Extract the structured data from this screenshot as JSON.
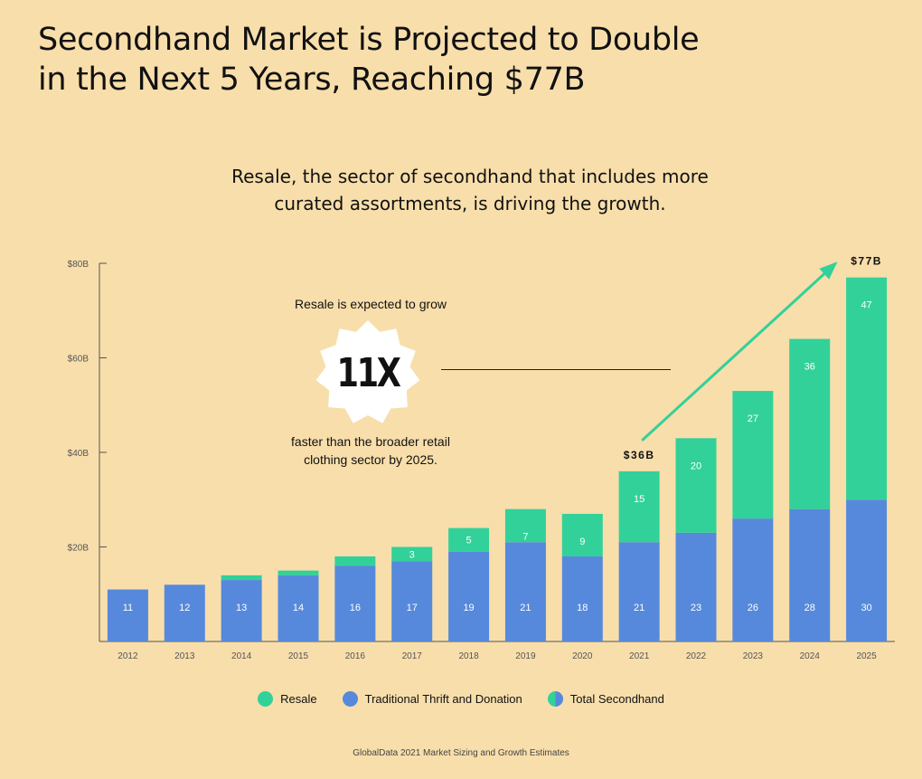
{
  "header": {
    "title_line1": "Secondhand Market is Projected to Double",
    "title_line2": "in the Next 5 Years, Reaching $77B",
    "subtitle_line1": "Resale, the sector of secondhand that includes more",
    "subtitle_line2": "curated assortments, is driving the growth."
  },
  "annotation": {
    "top": "Resale is expected to grow",
    "badge": "11X",
    "bottom_line1": "faster than the broader retail",
    "bottom_line2": "clothing sector by 2025."
  },
  "legend": {
    "resale": "Resale",
    "thrift": "Traditional Thrift and Donation",
    "total": "Total Secondhand"
  },
  "source": "GlobalData 2021 Market Sizing and Growth Estimates",
  "colors": {
    "background": "#f8deab",
    "resale": "#32d19a",
    "thrift": "#5689dc",
    "arrow": "#32d19a"
  },
  "chart_data": {
    "type": "bar",
    "stacked": true,
    "categories": [
      "2012",
      "2013",
      "2014",
      "2015",
      "2016",
      "2017",
      "2018",
      "2019",
      "2020",
      "2021",
      "2022",
      "2023",
      "2024",
      "2025"
    ],
    "series": [
      {
        "name": "Traditional Thrift and Donation",
        "values": [
          11,
          12,
          13,
          14,
          16,
          17,
          19,
          21,
          18,
          21,
          23,
          26,
          28,
          30
        ],
        "labels": [
          "11",
          "12",
          "13",
          "14",
          "16",
          "17",
          "19",
          "21",
          "18",
          "21",
          "23",
          "26",
          "28",
          "30"
        ]
      },
      {
        "name": "Resale",
        "values": [
          0,
          0,
          1,
          1,
          2,
          3,
          5,
          7,
          9,
          15,
          20,
          27,
          36,
          47
        ],
        "labels": [
          "",
          "",
          "",
          "",
          "",
          "3",
          "5",
          "7",
          "9",
          "15",
          "20",
          "27",
          "36",
          "47"
        ]
      }
    ],
    "ylim": [
      0,
      80
    ],
    "yticks": [
      20,
      40,
      60,
      80
    ],
    "ytick_labels": [
      "$20B",
      "$40B",
      "$60B",
      "$80B"
    ],
    "callouts": [
      {
        "category": "2021",
        "text": "$36B"
      },
      {
        "category": "2025",
        "text": "$77B"
      }
    ],
    "legend_position": "bottom"
  }
}
